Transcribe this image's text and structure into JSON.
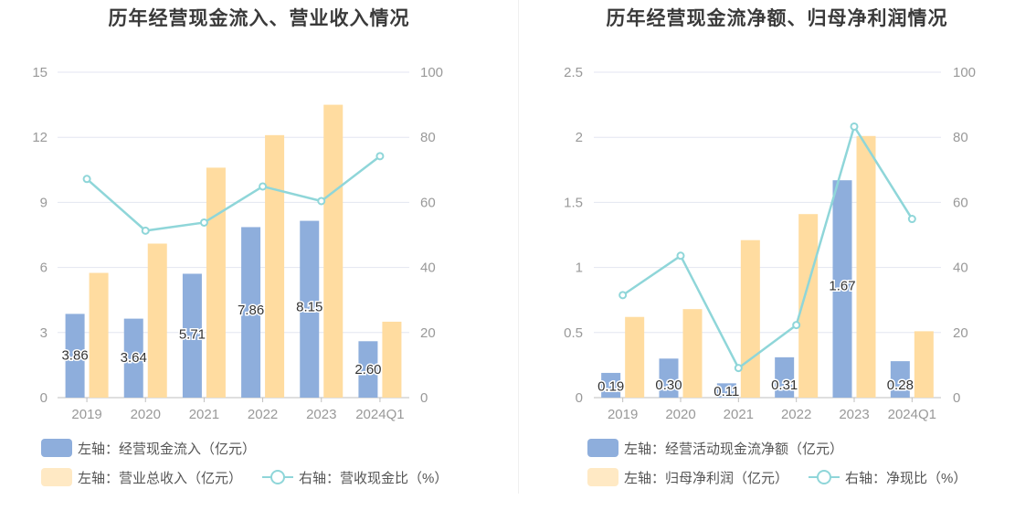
{
  "charts": [
    {
      "title": "历年经营现金流入、营业收入情况",
      "legend": [
        {
          "label": "左轴：经营现金流入（亿元）",
          "kind": "bar",
          "color": "#8eaedc"
        },
        {
          "label": "左轴：营业总收入（亿元）",
          "kind": "bar",
          "color": "#ffdca0"
        },
        {
          "label": "右轴：营收现金比（%）",
          "kind": "line",
          "color": "#8fd6d9"
        }
      ]
    },
    {
      "title": "历年经营现金流净额、归母净利润情况",
      "legend": [
        {
          "label": "左轴：经营活动现金流净额（亿元）",
          "kind": "bar",
          "color": "#8eaedc"
        },
        {
          "label": "左轴：归母净利润（亿元）",
          "kind": "bar",
          "color": "#ffdca0"
        },
        {
          "label": "右轴：净现比（%）",
          "kind": "line",
          "color": "#8fd6d9"
        }
      ]
    }
  ],
  "chart_data": [
    {
      "type": "bar",
      "title": "历年经营现金流入、营业收入情况",
      "categories": [
        "2019",
        "2020",
        "2021",
        "2022",
        "2023",
        "2024Q1"
      ],
      "left_axis": {
        "ticks": [
          "0",
          "3",
          "6",
          "9",
          "12",
          "15"
        ],
        "range": [
          0,
          15
        ]
      },
      "right_axis": {
        "ticks": [
          "0",
          "20",
          "40",
          "60",
          "80",
          "100"
        ],
        "range": [
          0,
          100
        ]
      },
      "series": [
        {
          "name": "左轴：经营现金流入（亿元）",
          "type": "bar",
          "axis": "left",
          "color": "#8eaedc",
          "values": [
            3.86,
            3.64,
            5.71,
            7.86,
            8.15,
            2.6
          ],
          "labels": [
            "3.86",
            "3.64",
            "5.71",
            "7.86",
            "8.15",
            "2.60"
          ]
        },
        {
          "name": "左轴：营业总收入（亿元）",
          "type": "bar",
          "axis": "left",
          "color": "#ffdca0",
          "values": [
            5.75,
            7.1,
            10.6,
            12.1,
            13.5,
            3.5
          ]
        },
        {
          "name": "右轴：营收现金比（%）",
          "type": "line",
          "axis": "right",
          "color": "#8fd6d9",
          "values": [
            67.2,
            51.3,
            53.8,
            64.9,
            60.4,
            74.2
          ]
        }
      ],
      "grid": true,
      "legend_position": "bottom-left"
    },
    {
      "type": "bar",
      "title": "历年经营现金流净额、归母净利润情况",
      "categories": [
        "2019",
        "2020",
        "2021",
        "2022",
        "2023",
        "2024Q1"
      ],
      "left_axis": {
        "ticks": [
          "0",
          "0.5",
          "1",
          "1.5",
          "2",
          "2.5"
        ],
        "range": [
          0,
          2.5
        ]
      },
      "right_axis": {
        "ticks": [
          "0",
          "20",
          "40",
          "60",
          "80",
          "100"
        ],
        "range": [
          0,
          100
        ]
      },
      "series": [
        {
          "name": "左轴：经营活动现金流净额（亿元）",
          "type": "bar",
          "axis": "left",
          "color": "#8eaedc",
          "values": [
            0.19,
            0.3,
            0.11,
            0.31,
            1.67,
            0.28
          ],
          "labels": [
            "0.19",
            "0.30",
            "0.11",
            "0.31",
            "1.67",
            "0.28"
          ]
        },
        {
          "name": "左轴：归母净利润（亿元）",
          "type": "bar",
          "axis": "left",
          "color": "#ffdca0",
          "values": [
            0.62,
            0.68,
            1.21,
            1.41,
            2.01,
            0.51
          ]
        },
        {
          "name": "右轴：净现比（%）",
          "type": "line",
          "axis": "right",
          "color": "#8fd6d9",
          "values": [
            31.5,
            43.6,
            9.1,
            22.3,
            83.3,
            54.9
          ]
        }
      ],
      "grid": true,
      "legend_position": "bottom-left"
    }
  ]
}
